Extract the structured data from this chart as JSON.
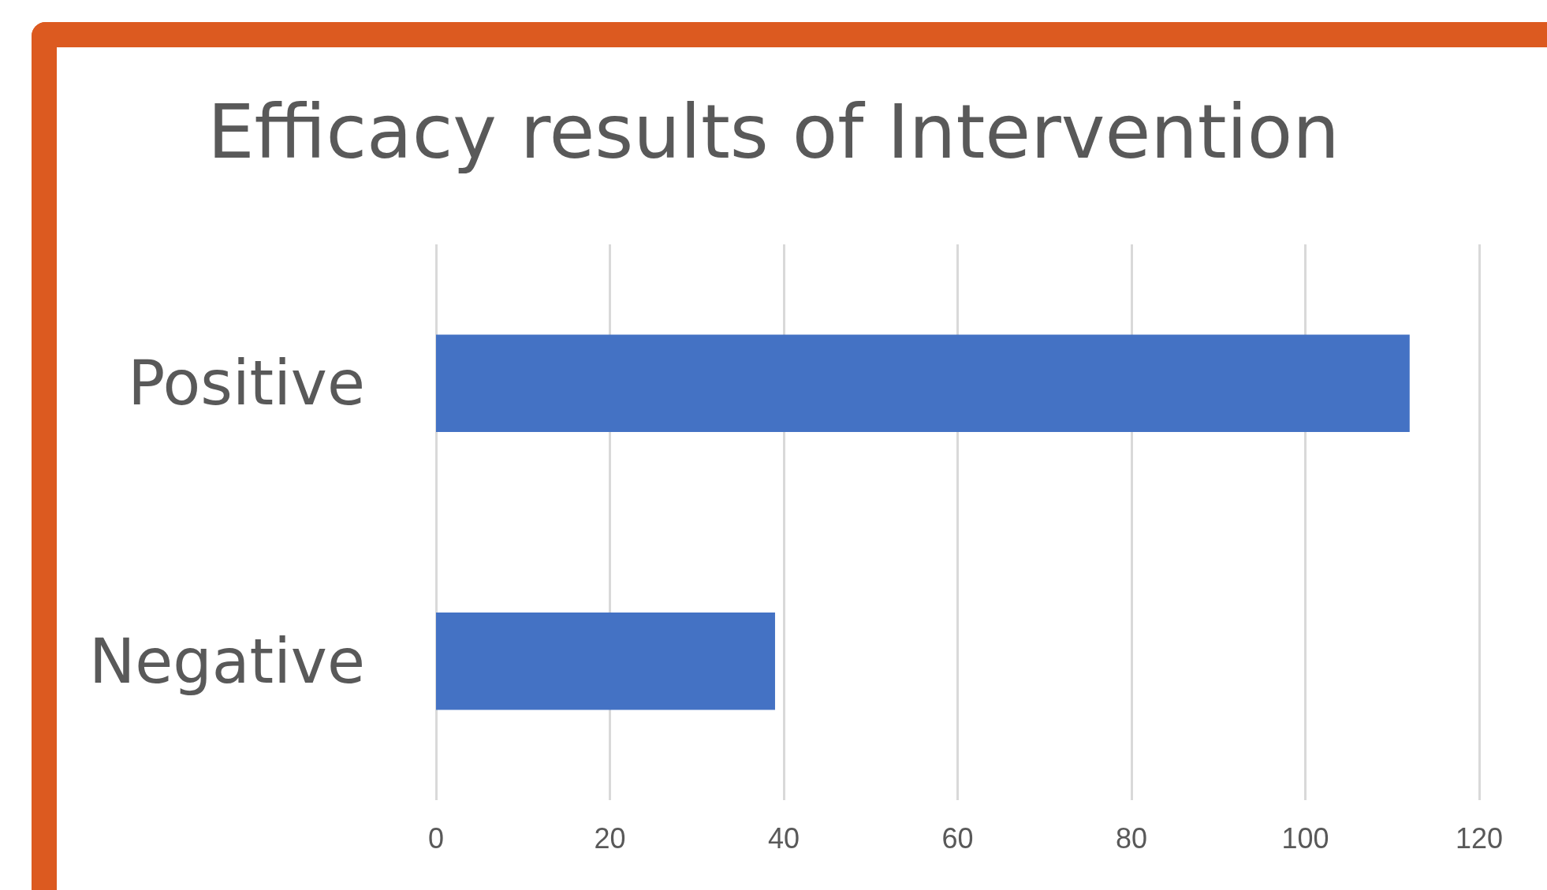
{
  "chart_data": {
    "type": "bar",
    "orientation": "horizontal",
    "title": "Efficacy results of Intervention",
    "categories": [
      "Positive",
      "Negative"
    ],
    "values": [
      112,
      39
    ],
    "color": "#4472c4",
    "xlim": [
      0,
      120
    ],
    "xticks": [
      0,
      20,
      40,
      60,
      80,
      100,
      120
    ],
    "grid": "x"
  }
}
